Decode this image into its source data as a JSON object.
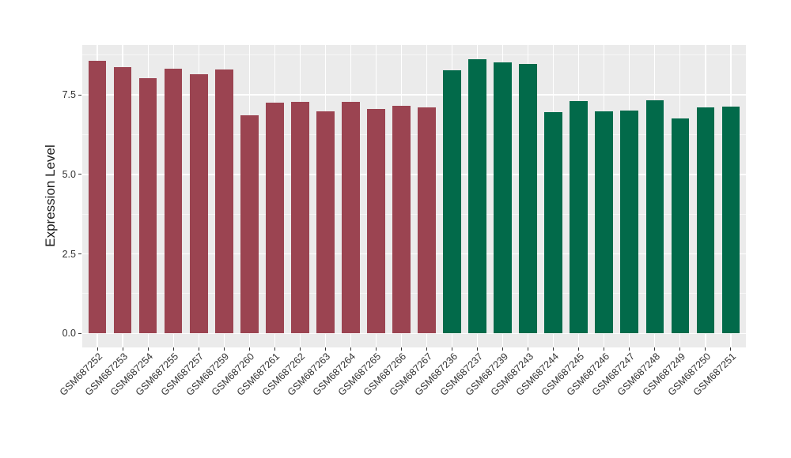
{
  "colors": {
    "background": "#FFFFFF",
    "panel_background": "#EBEBEB",
    "gridline": "#FFFFFF",
    "tick_label": "#333333",
    "axis_title": "#1A1A1A",
    "bar_red": "#9B4451",
    "bar_green": "#026A4A"
  },
  "chart_data": {
    "type": "bar",
    "title": "",
    "xlabel": "",
    "ylabel": "Expression Level",
    "yticks": [
      0.0,
      2.5,
      5.0,
      7.5
    ],
    "yminor": [
      1.25,
      3.75,
      6.25,
      8.75
    ],
    "ylim": [
      -0.44,
      9.07
    ],
    "grid": "white major+minor horizontal lines, white vertical major lines at each category, gray panel",
    "legend_position": "none",
    "group_colors": {
      "red": "#9B4451",
      "green": "#026A4A"
    },
    "bars": [
      {
        "label": "GSM687252",
        "value": 8.56,
        "group": "red"
      },
      {
        "label": "GSM687253",
        "value": 8.38,
        "group": "red"
      },
      {
        "label": "GSM687254",
        "value": 8.03,
        "group": "red"
      },
      {
        "label": "GSM687255",
        "value": 8.31,
        "group": "red"
      },
      {
        "label": "GSM687257",
        "value": 8.16,
        "group": "red"
      },
      {
        "label": "GSM687259",
        "value": 8.29,
        "group": "red"
      },
      {
        "label": "GSM687260",
        "value": 6.87,
        "group": "red"
      },
      {
        "label": "GSM687261",
        "value": 7.26,
        "group": "red"
      },
      {
        "label": "GSM687262",
        "value": 7.29,
        "group": "red"
      },
      {
        "label": "GSM687263",
        "value": 6.99,
        "group": "red"
      },
      {
        "label": "GSM687264",
        "value": 7.28,
        "group": "red"
      },
      {
        "label": "GSM687265",
        "value": 7.05,
        "group": "red"
      },
      {
        "label": "GSM687266",
        "value": 7.15,
        "group": "red"
      },
      {
        "label": "GSM687267",
        "value": 7.1,
        "group": "red"
      },
      {
        "label": "GSM687236",
        "value": 8.27,
        "group": "green"
      },
      {
        "label": "GSM687237",
        "value": 8.63,
        "group": "green"
      },
      {
        "label": "GSM687239",
        "value": 8.53,
        "group": "green"
      },
      {
        "label": "GSM687243",
        "value": 8.46,
        "group": "green"
      },
      {
        "label": "GSM687244",
        "value": 6.95,
        "group": "green"
      },
      {
        "label": "GSM687245",
        "value": 7.31,
        "group": "green"
      },
      {
        "label": "GSM687246",
        "value": 6.97,
        "group": "green"
      },
      {
        "label": "GSM687247",
        "value": 7.01,
        "group": "green"
      },
      {
        "label": "GSM687248",
        "value": 7.32,
        "group": "green"
      },
      {
        "label": "GSM687249",
        "value": 6.76,
        "group": "green"
      },
      {
        "label": "GSM687250",
        "value": 7.1,
        "group": "green"
      },
      {
        "label": "GSM687251",
        "value": 7.13,
        "group": "green"
      }
    ]
  }
}
